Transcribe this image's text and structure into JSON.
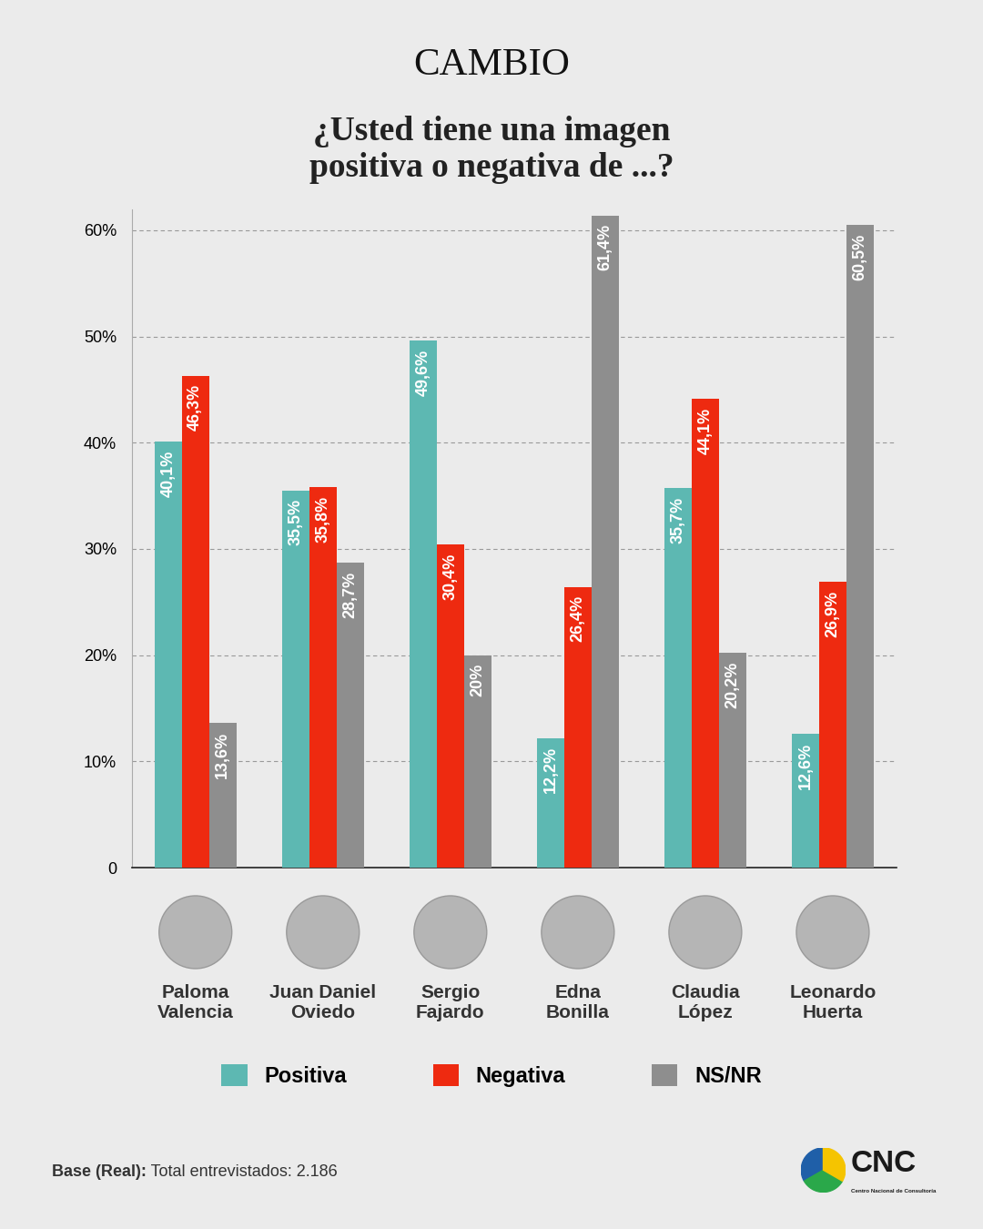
{
  "chart_data": {
    "type": "bar",
    "title": "¿Usted tiene una imagen\npositiva o negativa de ...?",
    "categories": [
      "Paloma\nValencia",
      "Juan Daniel\nOviedo",
      "Sergio\nFajardo",
      "Edna\nBonilla",
      "Claudia\nLópez",
      "Leonardo\nHuerta"
    ],
    "series": [
      {
        "name": "Positiva",
        "color": "#5db8b2",
        "values": [
          40.1,
          35.5,
          49.6,
          12.2,
          35.7,
          12.6
        ],
        "value_labels": [
          "40,1%",
          "35,5%",
          "49,6%",
          "12,2%",
          "35,7%",
          "12,6%"
        ]
      },
      {
        "name": "Negativa",
        "color": "#ee2a10",
        "values": [
          46.3,
          35.8,
          30.4,
          26.4,
          44.1,
          26.9
        ],
        "value_labels": [
          "46,3%",
          "35,8%",
          "30,4%",
          "26,4%",
          "44,1%",
          "26,9%"
        ]
      },
      {
        "name": "NS/NR",
        "color": "#8e8e8e",
        "values": [
          13.6,
          28.7,
          20,
          61.4,
          20.2,
          60.5
        ],
        "value_labels": [
          "13,6%",
          "28,7%",
          "20%",
          "61,4%",
          "20,2%",
          "60,5%"
        ]
      }
    ],
    "ylim": [
      0,
      62
    ],
    "yticks": [
      0,
      {
        "value": 10,
        "label": "10%"
      },
      {
        "value": 20,
        "label": "20%"
      },
      {
        "value": 30,
        "label": "30%"
      },
      {
        "value": 40,
        "label": "40%"
      },
      {
        "value": 50,
        "label": "50%"
      },
      {
        "value": 60,
        "label": "60%"
      }
    ],
    "grid": true,
    "data_labels": true,
    "legend": "lower center"
  },
  "brand": "CAMBIO",
  "source": {
    "label": "Base (Real):",
    "text": "Total entrevistados: 2.186"
  },
  "logo": {
    "name": "CNC",
    "text": "Centro Nacional de Consultoría"
  }
}
